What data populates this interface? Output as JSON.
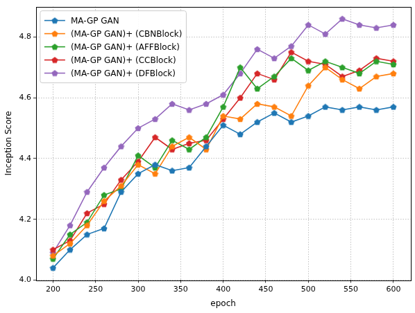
{
  "chart_data": {
    "type": "line",
    "x_label": "epoch",
    "y_label": "Inception Score",
    "x": [
      200,
      220,
      240,
      260,
      280,
      300,
      320,
      340,
      360,
      380,
      400,
      420,
      440,
      460,
      480,
      500,
      520,
      540,
      560,
      580,
      600
    ],
    "series": [
      {
        "name": "MA-GP GAN",
        "color": "#1f77b4",
        "marker": "pentagon",
        "values": [
          4.04,
          4.1,
          4.15,
          4.17,
          4.29,
          4.35,
          4.38,
          4.36,
          4.37,
          4.44,
          4.51,
          4.48,
          4.52,
          4.55,
          4.52,
          4.54,
          4.57,
          4.56,
          4.57,
          4.56,
          4.57
        ]
      },
      {
        "name": "(MA-GP GAN)+ (CBNBlock)",
        "color": "#ff7f0e",
        "marker": "pentagon",
        "values": [
          4.08,
          4.12,
          4.18,
          4.26,
          4.31,
          4.38,
          4.35,
          4.44,
          4.47,
          4.43,
          4.54,
          4.53,
          4.58,
          4.57,
          4.54,
          4.64,
          4.7,
          4.66,
          4.63,
          4.67,
          4.68
        ]
      },
      {
        "name": "(MA-GP GAN)+ (AFFBlock)",
        "color": "#2ca02c",
        "marker": "pentagon",
        "values": [
          4.07,
          4.15,
          4.19,
          4.28,
          4.3,
          4.41,
          4.37,
          4.46,
          4.43,
          4.47,
          4.57,
          4.7,
          4.63,
          4.67,
          4.73,
          4.69,
          4.72,
          4.7,
          4.68,
          4.72,
          4.71
        ]
      },
      {
        "name": "(MA-GP GAN)+ (CCBlock)",
        "color": "#d62728",
        "marker": "pentagon",
        "values": [
          4.1,
          4.13,
          4.22,
          4.25,
          4.33,
          4.39,
          4.47,
          4.43,
          4.45,
          4.46,
          4.53,
          4.6,
          4.68,
          4.66,
          4.75,
          4.72,
          4.71,
          4.67,
          4.69,
          4.73,
          4.72
        ]
      },
      {
        "name": "(MA-GP GAN)+ (DFBlock)",
        "color": "#9467bd",
        "marker": "pentagon",
        "values": [
          4.09,
          4.18,
          4.29,
          4.37,
          4.44,
          4.5,
          4.53,
          4.58,
          4.56,
          4.58,
          4.61,
          4.68,
          4.76,
          4.73,
          4.77,
          4.84,
          4.81,
          4.86,
          4.84,
          4.83,
          4.84
        ]
      }
    ],
    "xlim": [
      180,
      620
    ],
    "xticks": [
      200,
      250,
      300,
      350,
      400,
      450,
      500,
      550,
      600
    ],
    "ylim": [
      4.0,
      4.9
    ],
    "yticks": [
      {
        "value": 4.0,
        "label": "4.0"
      },
      4.2,
      4.4,
      4.6,
      4.8
    ],
    "grid": true,
    "legend": "upper left"
  }
}
